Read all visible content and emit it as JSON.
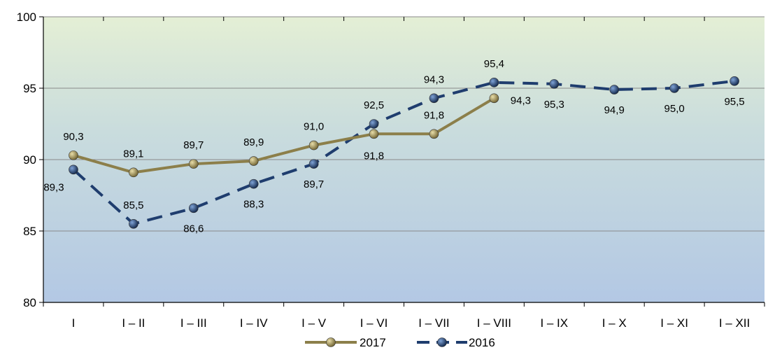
{
  "chart_data": {
    "type": "line",
    "categories": [
      "I",
      "I – II",
      "I – III",
      "I – IV",
      "I – V",
      "I – VI",
      "I – VII",
      "I – VIII",
      "I – IX",
      "I – X",
      "I – XI",
      "I – XII"
    ],
    "series": [
      {
        "name": "2017",
        "values": [
          90.3,
          89.1,
          89.7,
          89.9,
          91.0,
          91.8,
          91.8,
          94.3,
          null,
          null,
          null,
          null
        ],
        "labels": [
          "90,3",
          "89,1",
          "89,7",
          "89,9",
          "91,0",
          "91,8",
          "91,8",
          "94,3",
          null,
          null,
          null,
          null
        ],
        "color": "#8C7F4A",
        "style": "solid"
      },
      {
        "name": "2016",
        "values": [
          89.3,
          85.5,
          86.6,
          88.3,
          89.7,
          92.5,
          94.3,
          95.4,
          95.3,
          94.9,
          95.0,
          95.5
        ],
        "labels": [
          "89,3",
          "85,5",
          "86,6",
          "88,3",
          "89,7",
          "92,5",
          "94,3",
          "95,4",
          "95,3",
          "94,9",
          "95,0",
          "95,5"
        ],
        "color": "#1F3D6E",
        "style": "dashed"
      }
    ],
    "ylim": [
      80,
      100
    ],
    "yticks": [
      80,
      85,
      90,
      95,
      100
    ],
    "grid": true,
    "legend": "bottom-center",
    "title": "",
    "xlabel": "",
    "ylabel": ""
  }
}
